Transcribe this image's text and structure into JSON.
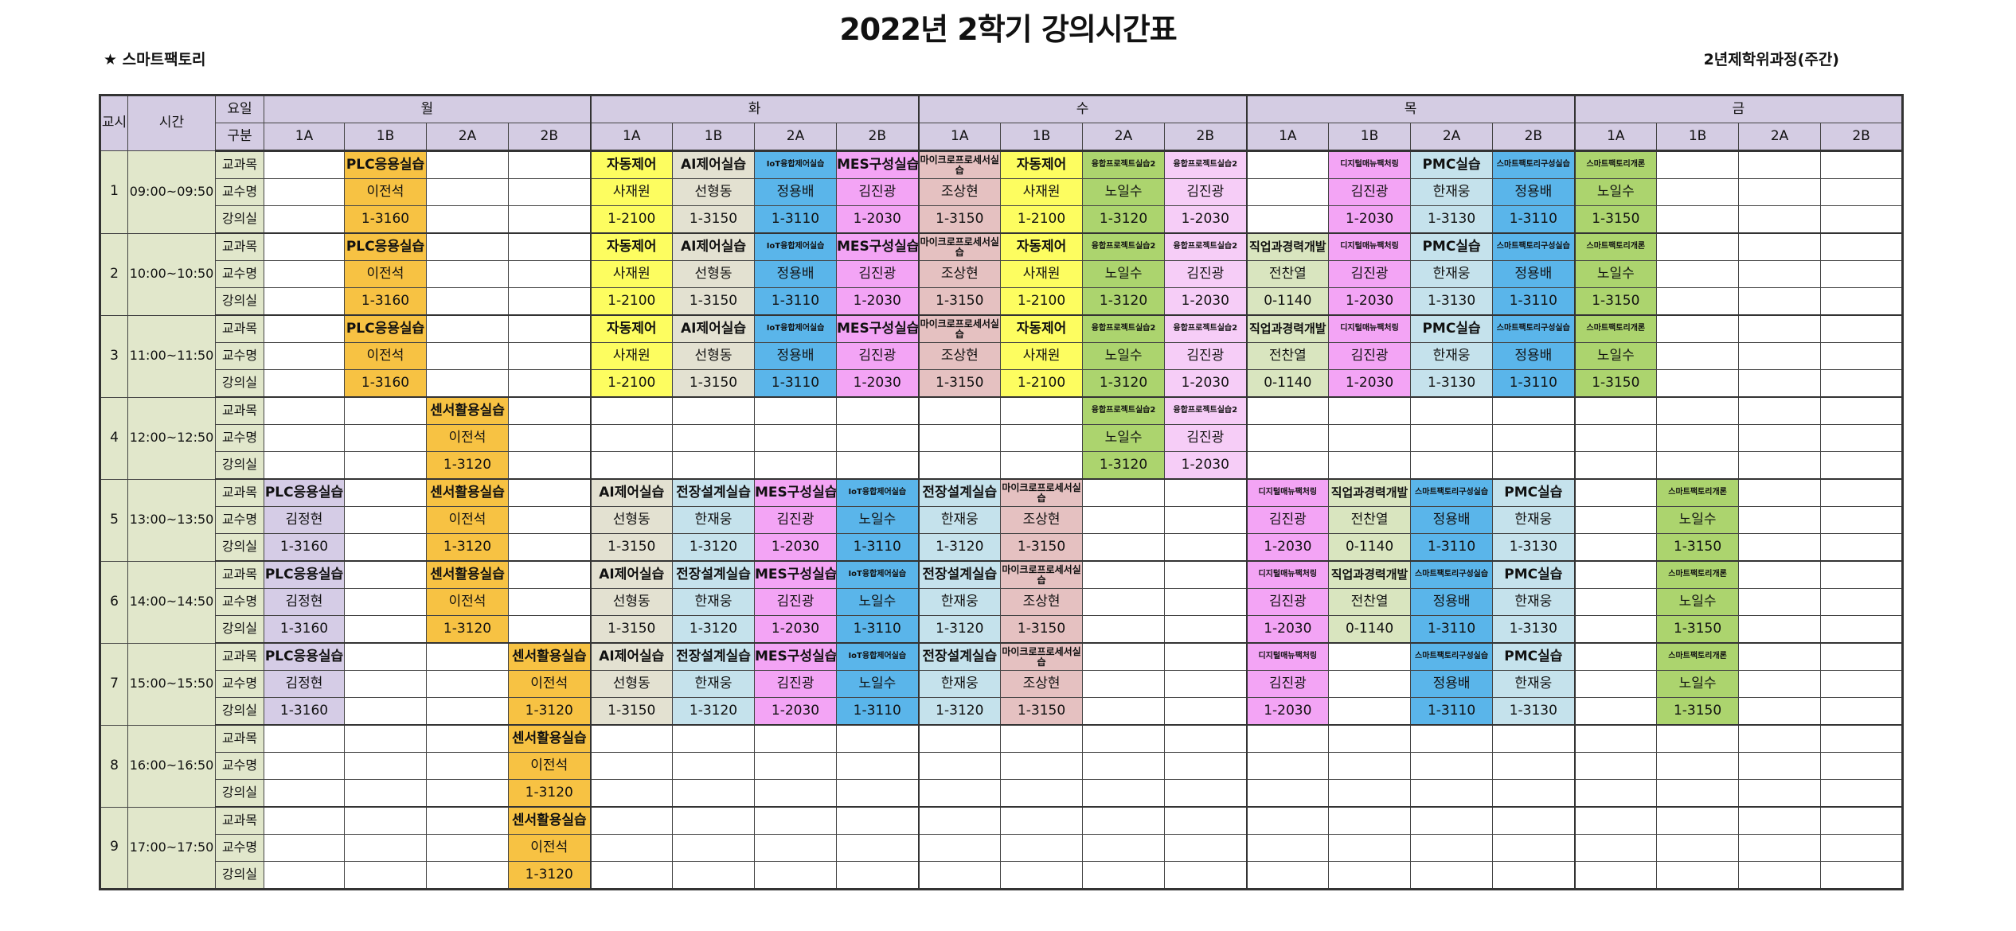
{
  "title": "2022년 2학기 강의시간표",
  "department": "★ 스마트팩토리",
  "program": "2년제학위과정(주간)",
  "header": {
    "period": "교시",
    "time": "시간",
    "weekday": "요일",
    "division": "구분",
    "days": [
      "월",
      "화",
      "수",
      "목",
      "금"
    ],
    "sections": [
      "1A",
      "1B",
      "2A",
      "2B"
    ]
  },
  "row_labels": [
    "교과목",
    "교수명",
    "강의실"
  ],
  "slots": [
    {
      "period": "1",
      "time": "09:00~09:50",
      "cells": [
        [
          "",
          "PLC응용실습",
          "",
          "",
          "자동제어",
          "AI제어실습",
          "IoT융합제어실습",
          "MES구성실습",
          "마이크로프로세서실습",
          "자동제어",
          "융합프로젝트실습2",
          "융합프로젝트실습2",
          "",
          "디지털매뉴팩처링",
          "PMC실습",
          "스마트팩토리구성실습",
          "스마트팩토리개론",
          "",
          "",
          ""
        ],
        [
          "",
          "이전석",
          "",
          "",
          "사재원",
          "선형동",
          "정용배",
          "김진광",
          "조상현",
          "사재원",
          "노일수",
          "김진광",
          "",
          "김진광",
          "한재웅",
          "정용배",
          "노일수",
          "",
          "",
          ""
        ],
        [
          "",
          "1-3160",
          "",
          "",
          "1-2100",
          "1-3150",
          "1-3110",
          "1-2030",
          "1-3150",
          "1-2100",
          "1-3120",
          "1-2030",
          "",
          "1-2030",
          "1-3130",
          "1-3110",
          "1-3150",
          "",
          "",
          ""
        ]
      ]
    },
    {
      "period": "2",
      "time": "10:00~10:50",
      "cells": [
        [
          "",
          "PLC응용실습",
          "",
          "",
          "자동제어",
          "AI제어실습",
          "IoT융합제어실습",
          "MES구성실습",
          "마이크로프로세서실습",
          "자동제어",
          "융합프로젝트실습2",
          "융합프로젝트실습2",
          "직업과경력개발",
          "디지털매뉴팩처링",
          "PMC실습",
          "스마트팩토리구성실습",
          "스마트팩토리개론",
          "",
          "",
          ""
        ],
        [
          "",
          "이전석",
          "",
          "",
          "사재원",
          "선형동",
          "정용배",
          "김진광",
          "조상현",
          "사재원",
          "노일수",
          "김진광",
          "전찬열",
          "김진광",
          "한재웅",
          "정용배",
          "노일수",
          "",
          "",
          ""
        ],
        [
          "",
          "1-3160",
          "",
          "",
          "1-2100",
          "1-3150",
          "1-3110",
          "1-2030",
          "1-3150",
          "1-2100",
          "1-3120",
          "1-2030",
          "0-1140",
          "1-2030",
          "1-3130",
          "1-3110",
          "1-3150",
          "",
          "",
          ""
        ]
      ]
    },
    {
      "period": "3",
      "time": "11:00~11:50",
      "cells": [
        [
          "",
          "PLC응용실습",
          "",
          "",
          "자동제어",
          "AI제어실습",
          "IoT융합제어실습",
          "MES구성실습",
          "마이크로프로세서실습",
          "자동제어",
          "융합프로젝트실습2",
          "융합프로젝트실습2",
          "직업과경력개발",
          "디지털매뉴팩처링",
          "PMC실습",
          "스마트팩토리구성실습",
          "스마트팩토리개론",
          "",
          "",
          ""
        ],
        [
          "",
          "이전석",
          "",
          "",
          "사재원",
          "선형동",
          "정용배",
          "김진광",
          "조상현",
          "사재원",
          "노일수",
          "김진광",
          "전찬열",
          "김진광",
          "한재웅",
          "정용배",
          "노일수",
          "",
          "",
          ""
        ],
        [
          "",
          "1-3160",
          "",
          "",
          "1-2100",
          "1-3150",
          "1-3110",
          "1-2030",
          "1-3150",
          "1-2100",
          "1-3120",
          "1-2030",
          "0-1140",
          "1-2030",
          "1-3130",
          "1-3110",
          "1-3150",
          "",
          "",
          ""
        ]
      ]
    },
    {
      "period": "4",
      "time": "12:00~12:50",
      "cells": [
        [
          "",
          "",
          "센서활용실습",
          "",
          "",
          "",
          "",
          "",
          "",
          "",
          "융합프로젝트실습2",
          "융합프로젝트실습2",
          "",
          "",
          "",
          "",
          "",
          "",
          "",
          ""
        ],
        [
          "",
          "",
          "이전석",
          "",
          "",
          "",
          "",
          "",
          "",
          "",
          "노일수",
          "김진광",
          "",
          "",
          "",
          "",
          "",
          "",
          "",
          ""
        ],
        [
          "",
          "",
          "1-3120",
          "",
          "",
          "",
          "",
          "",
          "",
          "",
          "1-3120",
          "1-2030",
          "",
          "",
          "",
          "",
          "",
          "",
          "",
          ""
        ]
      ]
    },
    {
      "period": "5",
      "time": "13:00~13:50",
      "cells": [
        [
          "PLC응용실습",
          "",
          "센서활용실습",
          "",
          "AI제어실습",
          "전장설계실습",
          "MES구성실습",
          "IoT융합제어실습",
          "전장설계실습",
          "마이크로프로세서실습",
          "",
          "",
          "디지털매뉴팩처링",
          "직업과경력개발",
          "스마트팩토리구성실습",
          "PMC실습",
          "",
          "스마트팩토리개론",
          "",
          ""
        ],
        [
          "김정현",
          "",
          "이전석",
          "",
          "선형동",
          "한재웅",
          "김진광",
          "노일수",
          "한재웅",
          "조상현",
          "",
          "",
          "김진광",
          "전찬열",
          "정용배",
          "한재웅",
          "",
          "노일수",
          "",
          ""
        ],
        [
          "1-3160",
          "",
          "1-3120",
          "",
          "1-3150",
          "1-3120",
          "1-2030",
          "1-3110",
          "1-3120",
          "1-3150",
          "",
          "",
          "1-2030",
          "0-1140",
          "1-3110",
          "1-3130",
          "",
          "1-3150",
          "",
          ""
        ]
      ]
    },
    {
      "period": "6",
      "time": "14:00~14:50",
      "cells": [
        [
          "PLC응용실습",
          "",
          "센서활용실습",
          "",
          "AI제어실습",
          "전장설계실습",
          "MES구성실습",
          "IoT융합제어실습",
          "전장설계실습",
          "마이크로프로세서실습",
          "",
          "",
          "디지털매뉴팩처링",
          "직업과경력개발",
          "스마트팩토리구성실습",
          "PMC실습",
          "",
          "스마트팩토리개론",
          "",
          ""
        ],
        [
          "김정현",
          "",
          "이전석",
          "",
          "선형동",
          "한재웅",
          "김진광",
          "노일수",
          "한재웅",
          "조상현",
          "",
          "",
          "김진광",
          "전찬열",
          "정용배",
          "한재웅",
          "",
          "노일수",
          "",
          ""
        ],
        [
          "1-3160",
          "",
          "1-3120",
          "",
          "1-3150",
          "1-3120",
          "1-2030",
          "1-3110",
          "1-3120",
          "1-3150",
          "",
          "",
          "1-2030",
          "0-1140",
          "1-3110",
          "1-3130",
          "",
          "1-3150",
          "",
          ""
        ]
      ]
    },
    {
      "period": "7",
      "time": "15:00~15:50",
      "cells": [
        [
          "PLC응용실습",
          "",
          "",
          "센서활용실습",
          "AI제어실습",
          "전장설계실습",
          "MES구성실습",
          "IoT융합제어실습",
          "전장설계실습",
          "마이크로프로세서실습",
          "",
          "",
          "디지털매뉴팩처링",
          "",
          "스마트팩토리구성실습",
          "PMC실습",
          "",
          "스마트팩토리개론",
          "",
          ""
        ],
        [
          "김정현",
          "",
          "",
          "이전석",
          "선형동",
          "한재웅",
          "김진광",
          "노일수",
          "한재웅",
          "조상현",
          "",
          "",
          "김진광",
          "",
          "정용배",
          "한재웅",
          "",
          "노일수",
          "",
          ""
        ],
        [
          "1-3160",
          "",
          "",
          "1-3120",
          "1-3150",
          "1-3120",
          "1-2030",
          "1-3110",
          "1-3120",
          "1-3150",
          "",
          "",
          "1-2030",
          "",
          "1-3110",
          "1-3130",
          "",
          "1-3150",
          "",
          ""
        ]
      ]
    },
    {
      "period": "8",
      "time": "16:00~16:50",
      "cells": [
        [
          "",
          "",
          "",
          "센서활용실습",
          "",
          "",
          "",
          "",
          "",
          "",
          "",
          "",
          "",
          "",
          "",
          "",
          "",
          "",
          "",
          ""
        ],
        [
          "",
          "",
          "",
          "이전석",
          "",
          "",
          "",
          "",
          "",
          "",
          "",
          "",
          "",
          "",
          "",
          "",
          "",
          "",
          "",
          ""
        ],
        [
          "",
          "",
          "",
          "1-3120",
          "",
          "",
          "",
          "",
          "",
          "",
          "",
          "",
          "",
          "",
          "",
          "",
          "",
          "",
          "",
          ""
        ]
      ]
    },
    {
      "period": "9",
      "time": "17:00~17:50",
      "cells": [
        [
          "",
          "",
          "",
          "센서활용실습",
          "",
          "",
          "",
          "",
          "",
          "",
          "",
          "",
          "",
          "",
          "",
          "",
          "",
          "",
          "",
          ""
        ],
        [
          "",
          "",
          "",
          "이전석",
          "",
          "",
          "",
          "",
          "",
          "",
          "",
          "",
          "",
          "",
          "",
          "",
          "",
          "",
          "",
          ""
        ],
        [
          "",
          "",
          "",
          "1-3120",
          "",
          "",
          "",
          "",
          "",
          "",
          "",
          "",
          "",
          "",
          "",
          "",
          "",
          "",
          "",
          ""
        ]
      ]
    }
  ],
  "course_colors": {
    "PLC응용실습": "#f7c243",
    "자동제어": "#fdfd60",
    "AI제어실습": "#e3e1d1",
    "IoT융합제어실습": "#5ab5ea",
    "MES구성실습": "#f3a4f5",
    "마이크로프로세서실습": "#e5c1c1",
    "융합프로젝트실습2": "#acd46e",
    "직업과경력개발": "#d9e5bf",
    "디지털매뉴팩처링": "#f3a4f5",
    "PMC실습": "#c5e2ec",
    "스마트팩토리구성실습": "#5ab5ea",
    "스마트팩토리개론": "#acd46e",
    "센서활용실습": "#f7c243",
    "전장설계실습": "#c5e2ec"
  }
}
